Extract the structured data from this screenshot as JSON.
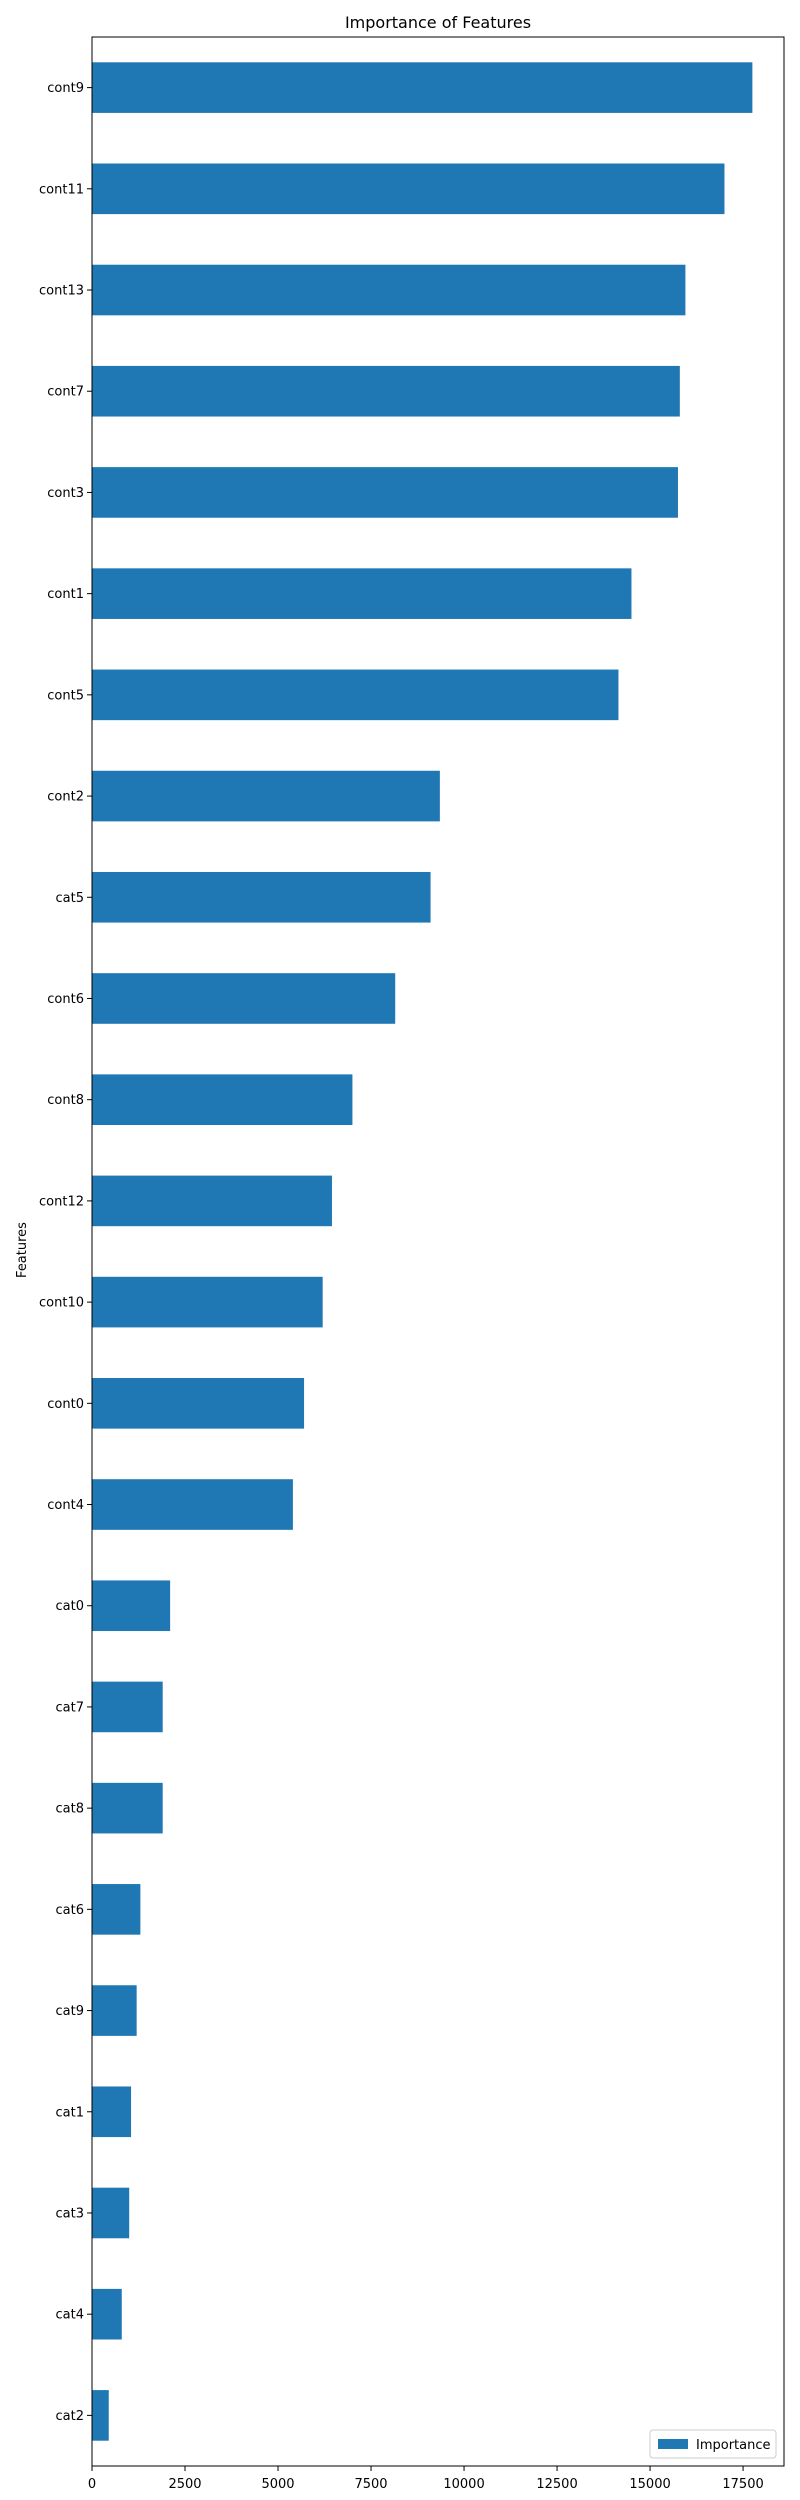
{
  "chart_data": {
    "type": "bar",
    "orientation": "horizontal",
    "title": "Importance of Features",
    "xlabel": "",
    "ylabel": "Features",
    "categories": [
      "cont9",
      "cont11",
      "cont13",
      "cont7",
      "cont3",
      "cont1",
      "cont5",
      "cont2",
      "cat5",
      "cont6",
      "cont8",
      "cont12",
      "cont10",
      "cont0",
      "cont4",
      "cat0",
      "cat7",
      "cat8",
      "cat6",
      "cat9",
      "cat1",
      "cat3",
      "cat4",
      "cat2"
    ],
    "series": [
      {
        "name": "Importance",
        "color": "#1f77b4",
        "values": [
          17750,
          17000,
          15950,
          15800,
          15750,
          14500,
          14150,
          9350,
          9100,
          8150,
          7000,
          6450,
          6200,
          5700,
          5400,
          2100,
          1900,
          1900,
          1300,
          1200,
          1050,
          1000,
          800,
          450
        ]
      }
    ],
    "xlim": [
      0,
      18600
    ],
    "xticks": [
      0,
      2500,
      5000,
      7500,
      10000,
      12500,
      15000,
      17500
    ],
    "grid": false,
    "legend_position": "lower-right"
  }
}
